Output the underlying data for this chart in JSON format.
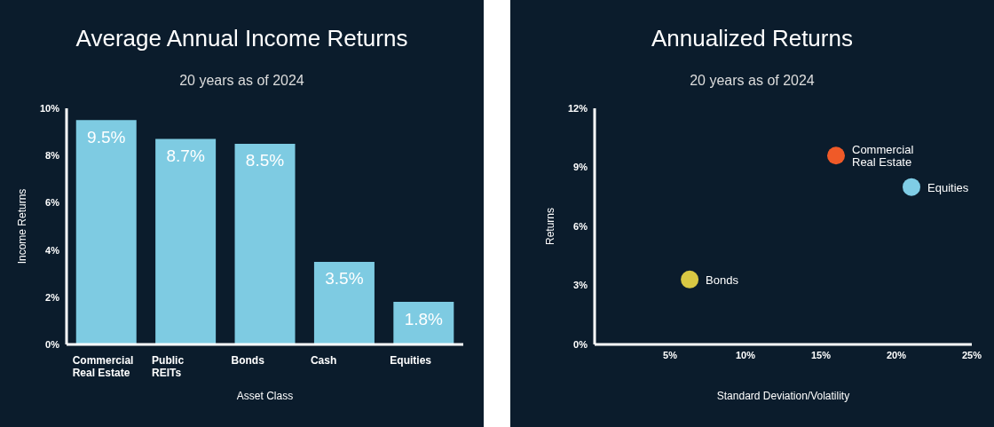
{
  "chart_data": [
    {
      "type": "bar",
      "title": "Average Annual Income Returns",
      "subtitle": "20 years as of 2024",
      "xlabel": "Asset Class",
      "ylabel": "Income Returns",
      "categories": [
        "Commercial Real Estate",
        "Public REITs",
        "Bonds",
        "Cash",
        "Equities"
      ],
      "values": [
        9.5,
        8.7,
        8.5,
        3.5,
        1.8
      ],
      "value_labels": [
        "9.5%",
        "8.7%",
        "8.5%",
        "3.5%",
        "1.8%"
      ],
      "color": "#7ecbe2",
      "ylim": [
        0,
        10
      ],
      "yticks": [
        {
          "value": 0,
          "label": "0%"
        },
        {
          "value": 2,
          "label": "2%"
        },
        {
          "value": 4,
          "label": "4%"
        },
        {
          "value": 6,
          "label": "6%"
        },
        {
          "value": 8,
          "label": "8%"
        },
        {
          "value": 10,
          "label": "10%"
        }
      ],
      "grid": false,
      "legend": false
    },
    {
      "type": "scatter",
      "title": "Annualized Returns",
      "subtitle": "20 years as of 2024",
      "xlabel": "Standard Deviation/Volatility",
      "ylabel": "Returns",
      "series": [
        {
          "name": "Commercial Real Estate",
          "color": "#f05a28",
          "x": [
            16
          ],
          "values": [
            9.6
          ]
        },
        {
          "name": "Equities",
          "color": "#7fcde6",
          "x": [
            21
          ],
          "values": [
            8.0
          ]
        },
        {
          "name": "Bonds",
          "color": "#d9c843",
          "x": [
            6.3
          ],
          "values": [
            3.3
          ]
        }
      ],
      "xlim": [
        0,
        25
      ],
      "xticks": [
        {
          "value": 5,
          "label": "5%"
        },
        {
          "value": 10,
          "label": "10%"
        },
        {
          "value": 15,
          "label": "15%"
        },
        {
          "value": 20,
          "label": "20%"
        },
        {
          "value": 25,
          "label": "25%"
        }
      ],
      "ylim": [
        0,
        12
      ],
      "yticks": [
        {
          "value": 0,
          "label": "0%"
        },
        {
          "value": 3,
          "label": "3%"
        },
        {
          "value": 6,
          "label": "6%"
        },
        {
          "value": 9,
          "label": "9%"
        },
        {
          "value": 12,
          "label": "12%"
        }
      ],
      "grid": false,
      "legend": false,
      "marker": "circle"
    }
  ]
}
